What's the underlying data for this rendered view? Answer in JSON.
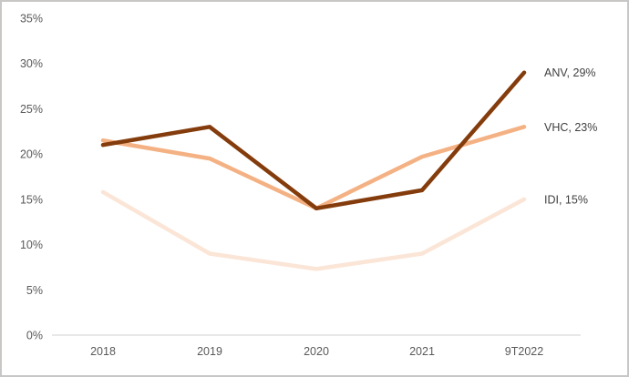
{
  "chart_data": {
    "type": "line",
    "title": "",
    "xlabel": "",
    "ylabel": "",
    "categories": [
      "2018",
      "2019",
      "2020",
      "2021",
      "9T2022"
    ],
    "series": [
      {
        "name": "IDI",
        "values": [
          15.8,
          9,
          7.3,
          9,
          15
        ],
        "color": "#FBE5D6",
        "end_label": "IDI, 15%"
      },
      {
        "name": "VHC",
        "values": [
          21.5,
          19.5,
          14,
          19.7,
          23
        ],
        "color": "#F4B183",
        "end_label": "VHC, 23%"
      },
      {
        "name": "ANV",
        "values": [
          21,
          23,
          14,
          16,
          29
        ],
        "color": "#843C0C",
        "end_label": "ANV, 29%"
      }
    ],
    "ylim": [
      0,
      35
    ],
    "y_tick_step": 5,
    "y_tick_labels": [
      "0%",
      "5%",
      "10%",
      "15%",
      "20%",
      "25%",
      "30%",
      "35%"
    ],
    "grid": false,
    "legend_position": "end-of-line-labels",
    "axis_line_color": "#D9D9D9",
    "tick_label_color": "#595959",
    "end_label_color": "#404040",
    "frame_border_color": "#C9C7C5"
  }
}
